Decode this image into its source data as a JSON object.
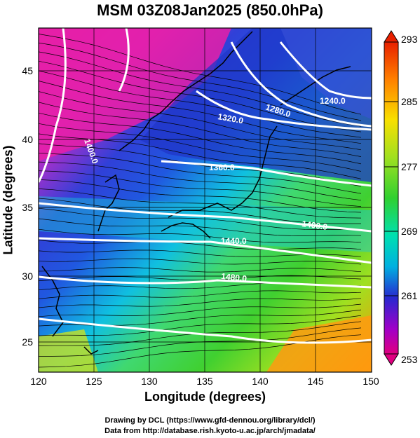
{
  "title": "MSM 03Z08Jan2025 (850.0hPa)",
  "axes": {
    "xlabel": "Longitude (degrees)",
    "ylabel": "Latitude  (degrees)",
    "xticks": [
      "120",
      "125",
      "130",
      "135",
      "140",
      "145",
      "150"
    ],
    "yticks": [
      "25",
      "30",
      "35",
      "40",
      "45"
    ]
  },
  "colorbar": {
    "min": 253,
    "max": 293,
    "labels": [
      "293",
      "285",
      "277",
      "269",
      "261",
      "253"
    ],
    "colors": [
      "#e00080",
      "#a000c8",
      "#2828d0",
      "#00b0e0",
      "#00e0b0",
      "#30d030",
      "#a0e020",
      "#f8e000",
      "#ff8000",
      "#e82000"
    ]
  },
  "contours": [
    {
      "label": "1240.0"
    },
    {
      "label": "1280.0"
    },
    {
      "label": "1320.0"
    },
    {
      "label": "1360.0"
    },
    {
      "label": "1400.0"
    },
    {
      "label": "1440.0"
    },
    {
      "label": "1480.0"
    },
    {
      "label": "1400.0"
    }
  ],
  "credits": {
    "line1": "Drawing by DCL (https://www.gfd-dennou.org/library/dcl/)",
    "line2": "Data from http://database.rish.kyoto-u.ac.jp/arch/jmadata/"
  }
}
